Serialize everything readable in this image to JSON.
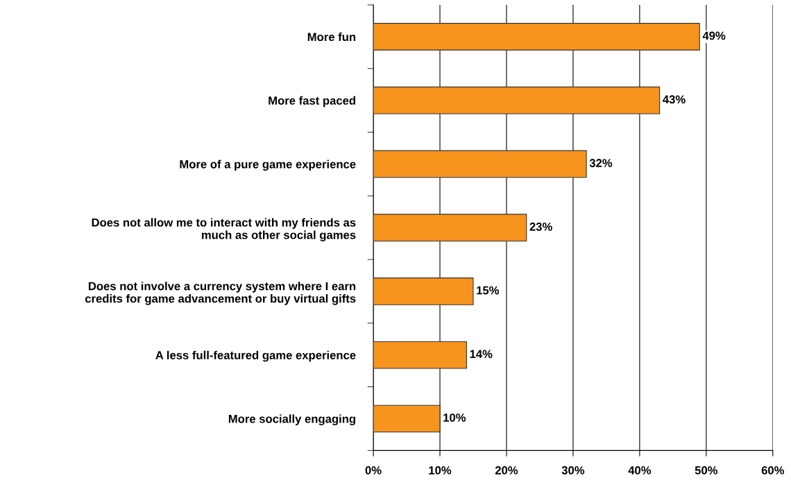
{
  "chart_data": {
    "type": "bar",
    "orientation": "horizontal",
    "categories": [
      "More fun",
      "More fast paced",
      "More of a pure game experience",
      "Does not allow me to interact with my friends as\nmuch as other social games",
      "Does not involve a currency system where I earn\ncredits for game advancement or buy virtual gifts",
      "A less full-featured game experience",
      "More socially engaging"
    ],
    "values": [
      49,
      43,
      32,
      23,
      15,
      14,
      10
    ],
    "value_labels": [
      "49%",
      "43%",
      "32%",
      "23%",
      "15%",
      "14%",
      "10%"
    ],
    "color": "#f7941d",
    "xlim": [
      0,
      60
    ],
    "xticks": [
      {
        "value": 0,
        "label": "0%"
      },
      {
        "value": 10,
        "label": "10%"
      },
      {
        "value": 20,
        "label": "20%"
      },
      {
        "value": 30,
        "label": "30%"
      },
      {
        "value": 40,
        "label": "40%"
      },
      {
        "value": 50,
        "label": "50%"
      },
      {
        "value": 60,
        "label": "60%"
      }
    ],
    "grid": "x"
  }
}
